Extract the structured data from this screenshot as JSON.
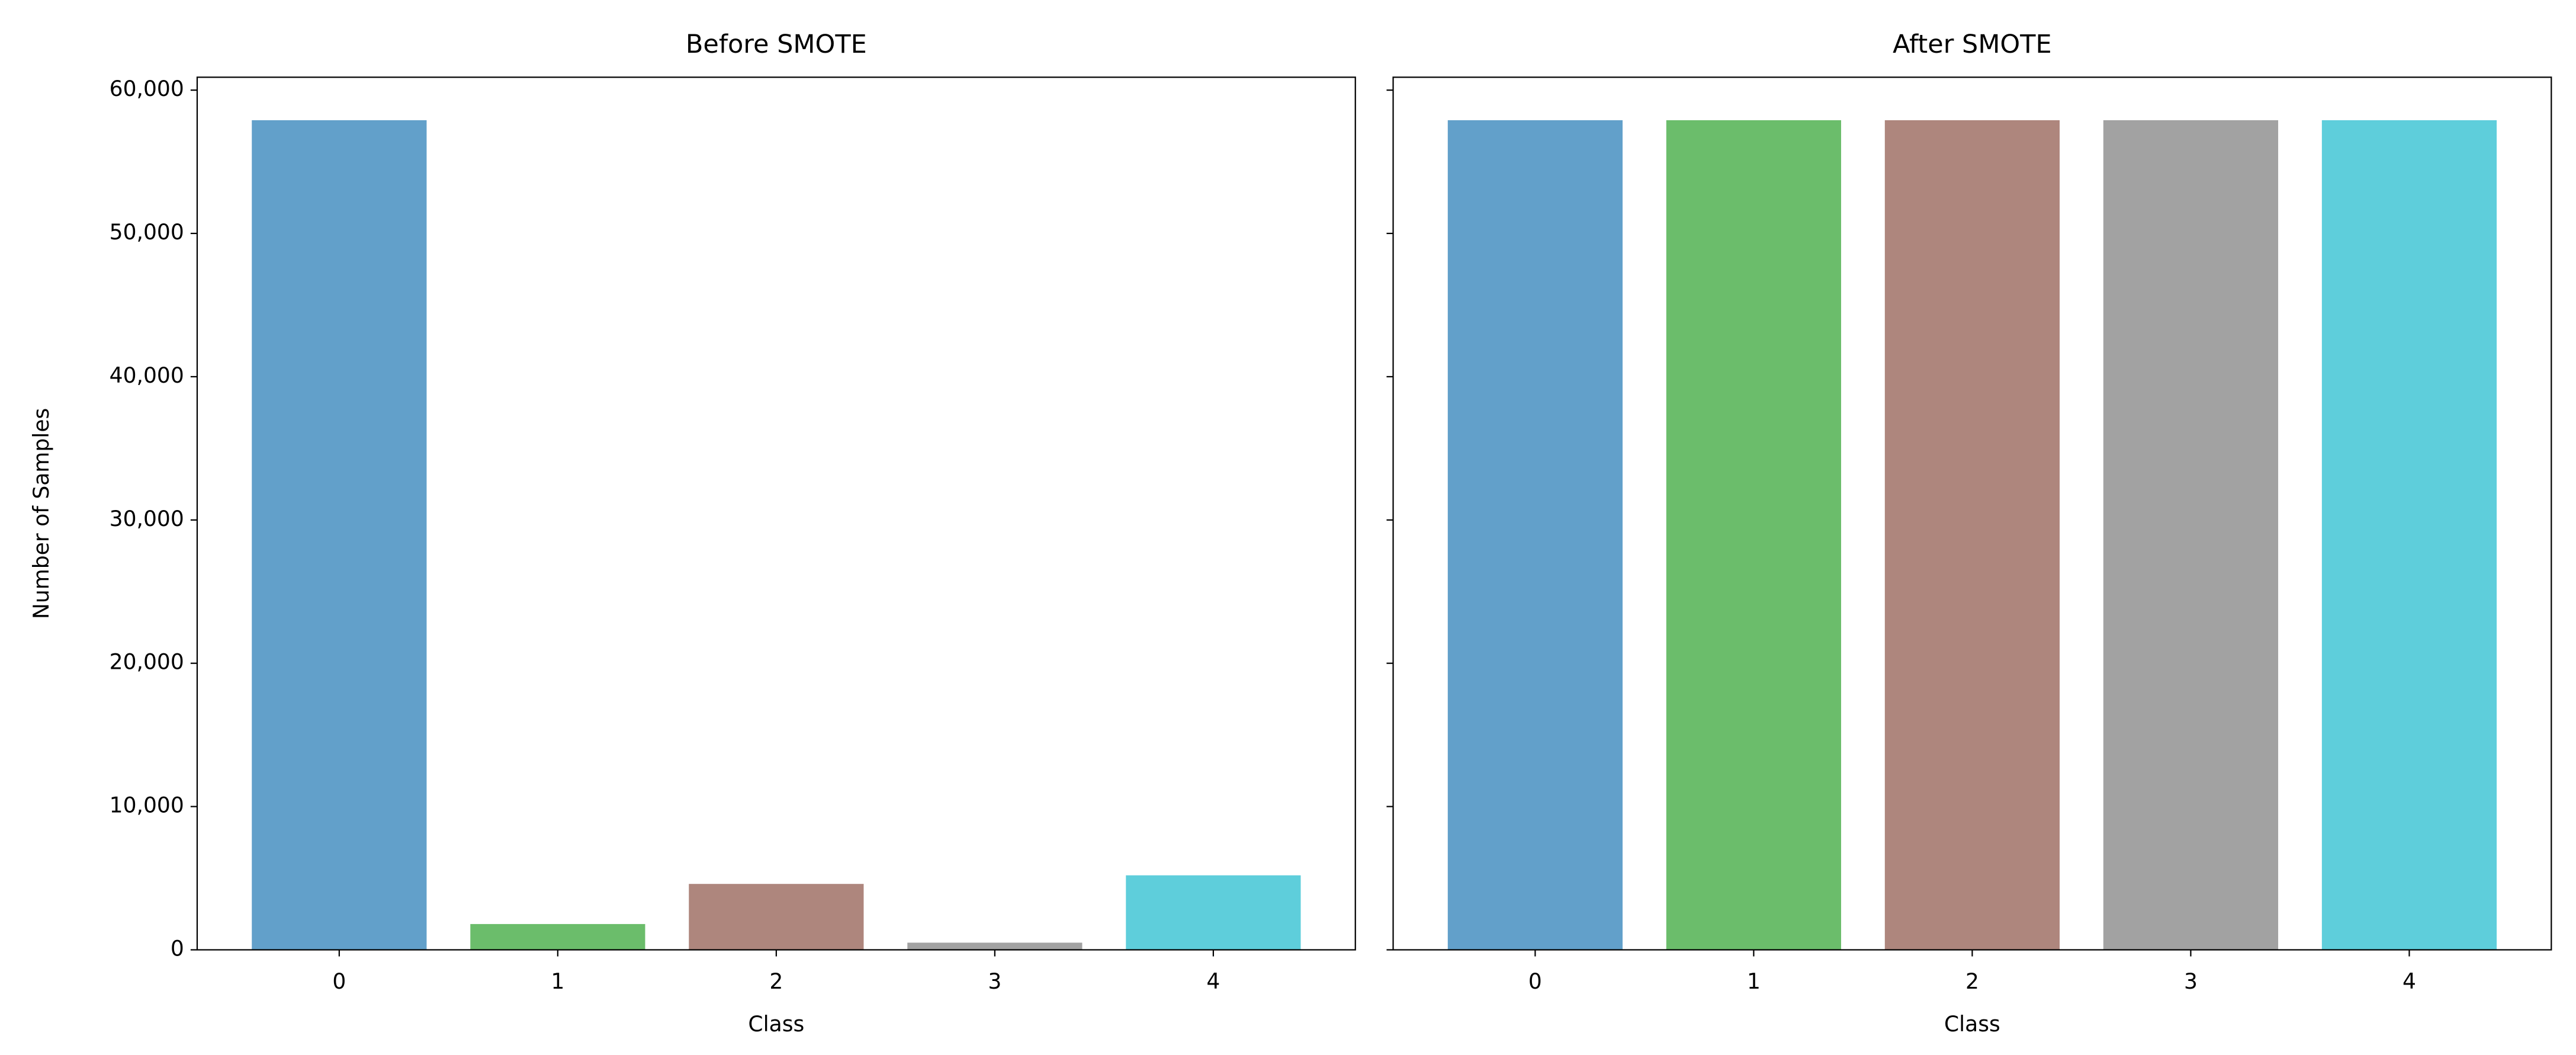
{
  "chart_data": [
    {
      "type": "bar",
      "title": "Before SMOTE",
      "xlabel": "Class",
      "ylabel": "Number of Samples",
      "categories": [
        "0",
        "1",
        "2",
        "3",
        "4"
      ],
      "values": [
        57900,
        1800,
        4600,
        500,
        5200
      ],
      "colors": [
        "#62a0ca",
        "#6bbd6b",
        "#ae867d",
        "#a2a2a2",
        "#5ecedb"
      ],
      "ylim": [
        0,
        60900
      ],
      "yticks": [
        0,
        {
          "value": 10000,
          "label": "10,000"
        },
        {
          "value": 20000,
          "label": "20,000"
        },
        {
          "value": 30000,
          "label": "30,000"
        },
        {
          "value": 40000,
          "label": "40,000"
        },
        {
          "value": 50000,
          "label": "50,000"
        },
        {
          "value": 60000,
          "label": "60,000"
        }
      ]
    },
    {
      "type": "bar",
      "title": "After SMOTE",
      "xlabel": "Class",
      "categories": [
        "0",
        "1",
        "2",
        "3",
        "4"
      ],
      "values": [
        57900,
        57900,
        57900,
        57900,
        57900
      ],
      "colors": [
        "#62a0ca",
        "#6bbd6b",
        "#ae867d",
        "#a2a2a2",
        "#5ecedb"
      ],
      "ylim": [
        0,
        60900
      ]
    }
  ]
}
